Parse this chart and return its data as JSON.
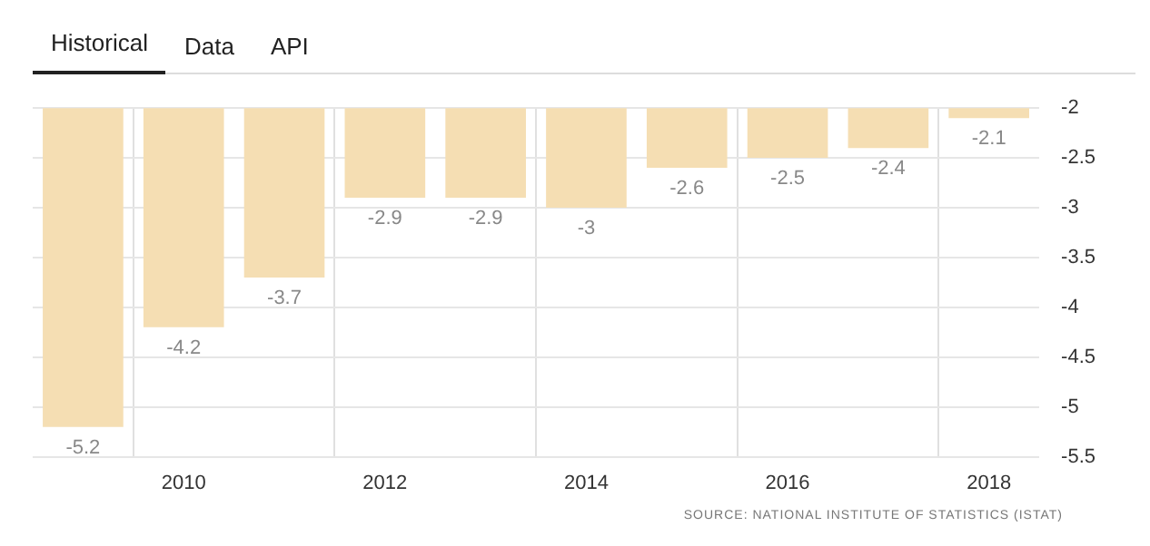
{
  "chart_data": {
    "type": "bar",
    "categories": [
      null,
      "2010",
      null,
      "2012",
      null,
      "2014",
      null,
      "2016",
      null,
      "2018"
    ],
    "values": [
      -5.2,
      -4.2,
      -3.7,
      -2.9,
      -2.9,
      -3,
      -2.6,
      -2.5,
      -2.4,
      -2.1
    ],
    "color": "#f5deb3",
    "ylim": [
      -5.5,
      -2
    ],
    "yticks": [
      -2,
      -2.5,
      -3,
      -3.5,
      -4,
      -4.5,
      -5,
      -5.5
    ],
    "grid": true,
    "data_labels": true,
    "annotations": [
      "Historical",
      "Data",
      "API",
      "SOURCE: NATIONAL INSTITUTE OF STATISTICS (ISTAT)"
    ]
  }
}
